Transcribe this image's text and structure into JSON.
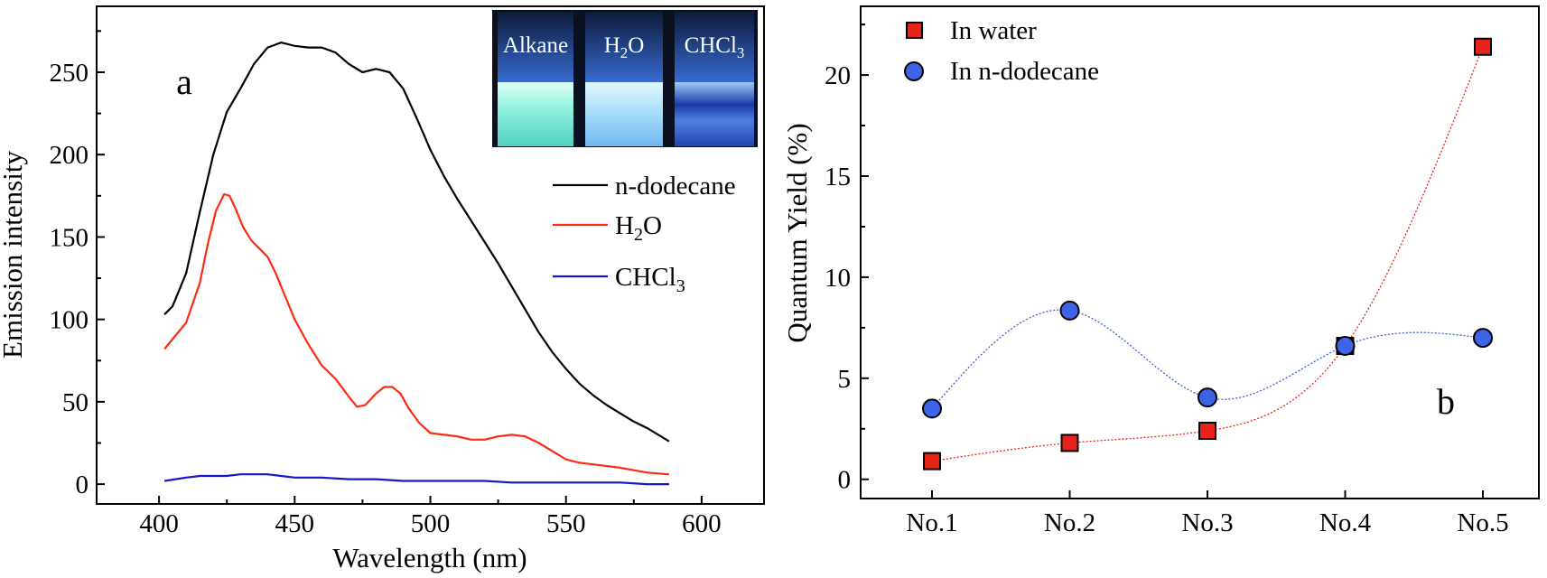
{
  "chart_data": [
    {
      "type": "line",
      "panel_label": "a",
      "xlabel": "Wavelength (nm)",
      "ylabel": "Emission intensity",
      "xlim": [
        377,
        623
      ],
      "ylim": [
        -12,
        290
      ],
      "xticks": [
        400,
        450,
        500,
        550,
        600
      ],
      "yticks": [
        0,
        50,
        100,
        150,
        200,
        250
      ],
      "grid": false,
      "legend": "right",
      "series": [
        {
          "name": "n-dodecane",
          "color": "#000000",
          "x": [
            402,
            405,
            410,
            415,
            420,
            425,
            430,
            435,
            440,
            445,
            450,
            455,
            460,
            465,
            470,
            475,
            480,
            485,
            490,
            495,
            500,
            505,
            510,
            515,
            520,
            525,
            530,
            535,
            540,
            545,
            550,
            555,
            560,
            565,
            570,
            575,
            580,
            585,
            588
          ],
          "y": [
            103,
            108,
            128,
            165,
            200,
            226,
            240,
            255,
            265,
            268,
            266,
            265,
            265,
            262,
            255,
            250,
            252,
            250,
            240,
            222,
            203,
            187,
            173,
            160,
            147,
            134,
            120,
            106,
            92,
            80,
            70,
            61,
            54,
            48,
            43,
            38,
            34,
            29,
            26
          ]
        },
        {
          "name": "H2O",
          "color": "#ff2a12",
          "x": [
            402,
            405,
            410,
            415,
            418,
            421,
            424,
            426,
            428,
            431,
            434,
            437,
            440,
            443,
            446,
            450,
            455,
            460,
            465,
            470,
            473,
            476,
            480,
            483,
            486,
            489,
            492,
            496,
            500,
            505,
            510,
            515,
            520,
            525,
            530,
            535,
            540,
            545,
            550,
            555,
            560,
            570,
            580,
            588
          ],
          "y": [
            82,
            88,
            98,
            122,
            146,
            166,
            176,
            175,
            168,
            156,
            148,
            143,
            138,
            128,
            116,
            100,
            85,
            72,
            64,
            53,
            47,
            48,
            55,
            59,
            59,
            55,
            46,
            37,
            31,
            30,
            29,
            27,
            27,
            29,
            30,
            29,
            25,
            20,
            15,
            13,
            12,
            10,
            7,
            6
          ]
        },
        {
          "name": "CHCl3",
          "color": "#1616c8",
          "x": [
            402,
            410,
            415,
            420,
            425,
            430,
            435,
            440,
            445,
            450,
            460,
            470,
            480,
            490,
            500,
            510,
            520,
            530,
            540,
            550,
            560,
            570,
            580,
            588
          ],
          "y": [
            2,
            4,
            5,
            5,
            5,
            6,
            6,
            6,
            5,
            4,
            4,
            3,
            3,
            2,
            2,
            2,
            2,
            1,
            1,
            1,
            1,
            1,
            0,
            0
          ]
        }
      ],
      "inset": {
        "labels": [
          "Alkane",
          "H2O",
          "CHCl3"
        ]
      }
    },
    {
      "type": "scatter",
      "panel_label": "b",
      "categories": [
        "No.1",
        "No.2",
        "No.3",
        "No.4",
        "No.5"
      ],
      "ylabel": "Quantum Yield (%)",
      "ylim": [
        -0.95,
        23.4
      ],
      "yticks": [
        0,
        5,
        10,
        15,
        20
      ],
      "grid": false,
      "legend": "top-left",
      "series": [
        {
          "name": "In water",
          "marker": "square",
          "color": "#e8231c",
          "values": [
            0.9,
            1.8,
            2.4,
            6.6,
            21.4
          ]
        },
        {
          "name": "In n-dodecane",
          "marker": "circle",
          "color": "#3d63e6",
          "values": [
            3.5,
            8.35,
            4.05,
            6.6,
            7.0
          ]
        }
      ]
    }
  ]
}
